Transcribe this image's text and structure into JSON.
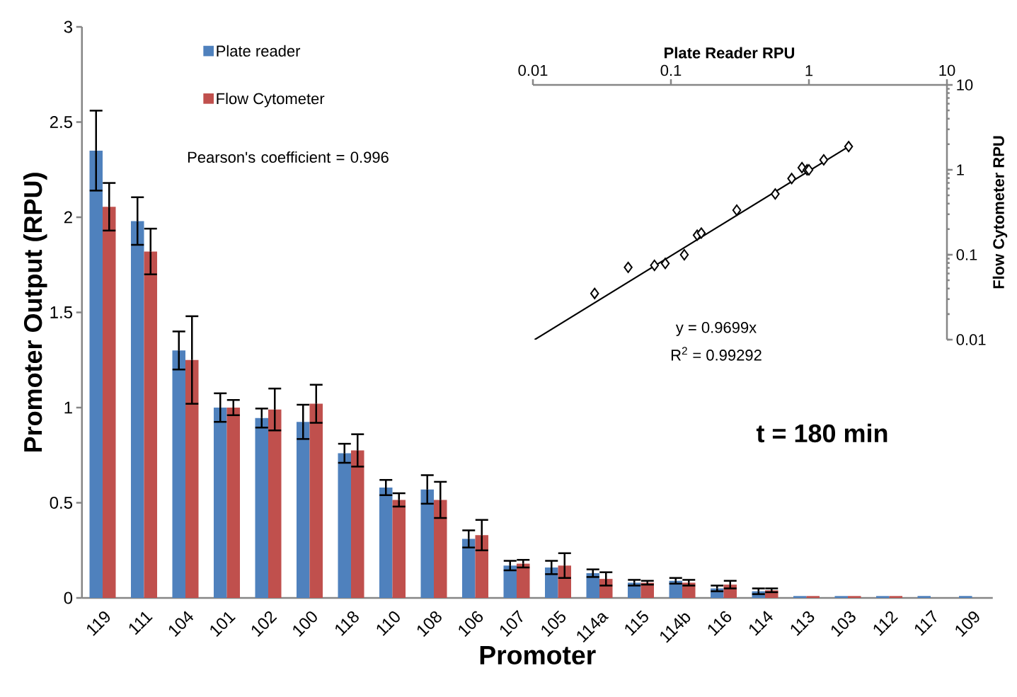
{
  "chart_data": [
    {
      "type": "bar",
      "xlabel": "Promoter",
      "ylabel": "Promoter Output (RPU)",
      "categories": [
        "119",
        "111",
        "104",
        "101",
        "102",
        "100",
        "118",
        "110",
        "108",
        "106",
        "107",
        "105",
        "114a",
        "115",
        "114b",
        "116",
        "114",
        "113",
        "103",
        "112",
        "117",
        "109"
      ],
      "series": [
        {
          "name": "Plate  reader",
          "color": "#4f81bd",
          "values": [
            2.35,
            1.98,
            1.3,
            1.0,
            0.945,
            0.925,
            0.76,
            0.58,
            0.57,
            0.31,
            0.17,
            0.16,
            0.13,
            0.08,
            0.09,
            0.05,
            0.035,
            0.01,
            0.01,
            0.01,
            0.01,
            0.01
          ],
          "errors": [
            0.21,
            0.125,
            0.1,
            0.075,
            0.05,
            0.09,
            0.05,
            0.04,
            0.075,
            0.045,
            0.025,
            0.035,
            0.02,
            0.015,
            0.015,
            0.015,
            0.015,
            null,
            null,
            null,
            null,
            null
          ]
        },
        {
          "name": "Flow Cytometer",
          "color": "#c0504d",
          "values": [
            2.055,
            1.82,
            1.25,
            1.0,
            0.99,
            1.02,
            0.775,
            0.515,
            0.515,
            0.33,
            0.18,
            0.17,
            0.1,
            0.08,
            0.08,
            0.07,
            0.04,
            0.01,
            0.01,
            0.01,
            0,
            0
          ],
          "errors": [
            0.125,
            0.12,
            0.23,
            0.04,
            0.11,
            0.1,
            0.085,
            0.035,
            0.095,
            0.08,
            0.02,
            0.065,
            0.035,
            0.01,
            0.015,
            0.02,
            0.01,
            null,
            null,
            null,
            null,
            null
          ]
        }
      ],
      "ylim": [
        0,
        3
      ],
      "yticks": [
        0,
        0.5,
        1,
        1.5,
        2,
        2.5,
        3
      ],
      "legend": "top left",
      "annotations": [
        "Pearson's  coefficient = 0.996",
        "t = 180 min"
      ]
    },
    {
      "type": "scatter",
      "xlabel": "Plate  Reader  RPU",
      "ylabel": "Flow Cytometer RPU",
      "log": "xy",
      "marker": "diamond",
      "xlim": [
        0.01,
        10
      ],
      "ylim": [
        0.01,
        10
      ],
      "xticks": [
        0.01,
        0.1,
        1,
        10
      ],
      "yticks": [
        0.01,
        0.1,
        1,
        10
      ],
      "series": [
        {
          "type": "scatter",
          "color": "#000000",
          "x": [
            0.028,
            0.049,
            0.076,
            0.091,
            0.125,
            0.155,
            0.166,
            0.3,
            0.57,
            0.75,
            0.89,
            0.97,
            1.0,
            1.28,
            1.94
          ],
          "values": [
            0.035,
            0.071,
            0.075,
            0.079,
            0.1,
            0.17,
            0.18,
            0.335,
            0.52,
            0.79,
            1.06,
            1.0,
            1.0,
            1.31,
            1.88
          ]
        },
        {
          "type": "line",
          "color": "#000000",
          "marker": "none",
          "x": [
            0.0103,
            1.94
          ],
          "values": [
            0.01,
            1.88
          ]
        }
      ],
      "annotations": [
        "y = 0.9699x",
        "R$^{2}$ = 0.99292"
      ]
    }
  ]
}
